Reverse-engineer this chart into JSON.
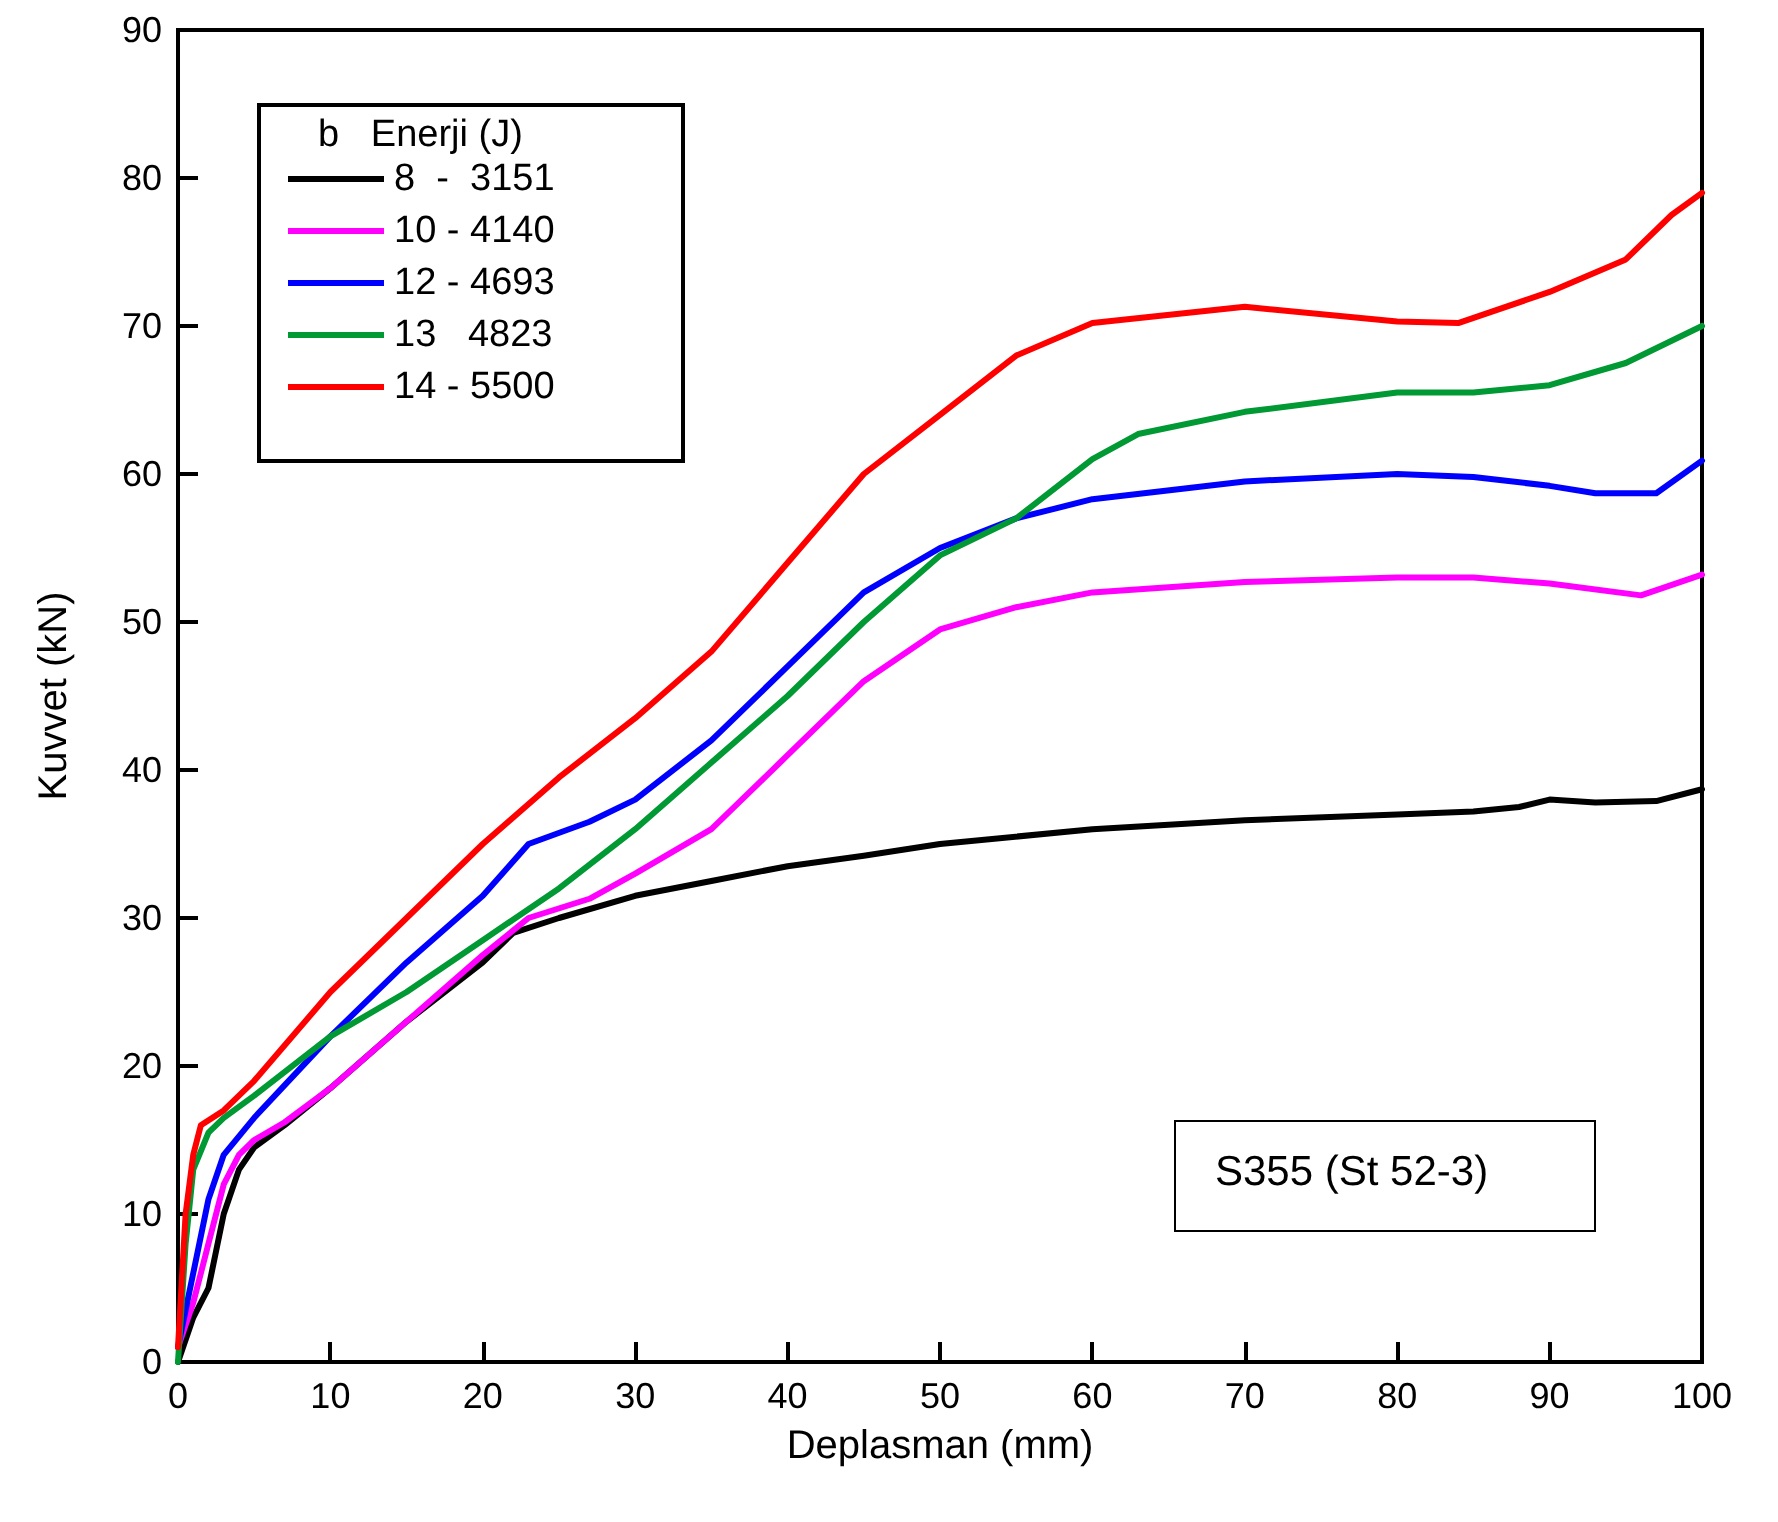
{
  "chart_data": {
    "type": "line",
    "xlabel": "Deplasman (mm)",
    "ylabel": "Kuvvet (kN)",
    "legend_title": "b   Enerji (J)",
    "legend": "top left",
    "grid": false,
    "marker": "none",
    "line_style": "solid",
    "xlim": [
      0,
      100
    ],
    "xticks": [
      0,
      10,
      20,
      30,
      40,
      50,
      60,
      70,
      80,
      90,
      100
    ],
    "ylim": [
      0,
      90
    ],
    "yticks": [
      0,
      10,
      20,
      30,
      40,
      50,
      60,
      70,
      80,
      90
    ],
    "annotations": [
      "S355 (St 52-3)"
    ],
    "series": [
      {
        "name": "8  -  3151",
        "color": "#000000",
        "x": [
          0,
          1,
          2,
          3,
          4,
          5,
          7,
          10,
          15,
          20,
          22,
          25,
          30,
          35,
          40,
          45,
          50,
          60,
          70,
          80,
          85,
          88,
          90,
          93,
          97,
          100
        ],
        "values": [
          0,
          3,
          5,
          10,
          13,
          14.5,
          16,
          18.5,
          23,
          27,
          29,
          30,
          31.5,
          32.5,
          33.5,
          34.2,
          35,
          36,
          36.6,
          37,
          37.2,
          37.5,
          38,
          37.8,
          37.9,
          38.7
        ]
      },
      {
        "name": "10 - 4140",
        "color": "#ff00ff",
        "x": [
          0,
          1,
          2,
          3,
          4,
          5,
          7,
          10,
          15,
          20,
          23,
          27,
          30,
          35,
          40,
          45,
          50,
          55,
          60,
          70,
          80,
          85,
          90,
          96,
          100
        ],
        "values": [
          1,
          4,
          8,
          12,
          14,
          15,
          16.2,
          18.5,
          23,
          27.5,
          30,
          31.3,
          33,
          36,
          41,
          46,
          49.5,
          51,
          52,
          52.7,
          53,
          53,
          52.6,
          51.8,
          53.2
        ]
      },
      {
        "name": "12 - 4693",
        "color": "#0000ff",
        "x": [
          0,
          1,
          2,
          3,
          5,
          10,
          15,
          20,
          23,
          27,
          30,
          35,
          40,
          45,
          50,
          55,
          60,
          70,
          80,
          85,
          90,
          93,
          97,
          100
        ],
        "values": [
          1,
          6,
          11,
          14,
          16.5,
          22,
          27,
          31.5,
          35,
          36.5,
          38,
          42,
          47,
          52,
          55,
          57,
          58.3,
          59.5,
          60,
          59.8,
          59.2,
          58.7,
          58.7,
          60.9
        ]
      },
      {
        "name": "13   4823",
        "color": "#009933",
        "x": [
          0,
          0.5,
          1,
          2,
          3,
          5,
          10,
          15,
          20,
          25,
          30,
          35,
          40,
          45,
          50,
          55,
          60,
          63,
          70,
          80,
          85,
          90,
          95,
          100
        ],
        "values": [
          0,
          8,
          13,
          15.5,
          16.5,
          18,
          22,
          25,
          28.5,
          32,
          36,
          40.5,
          45,
          50,
          54.5,
          57,
          61,
          62.7,
          64.2,
          65.5,
          65.5,
          66,
          67.5,
          70
        ]
      },
      {
        "name": "14 - 5500",
        "color": "#ff0000",
        "x": [
          0,
          0.5,
          1,
          1.5,
          3,
          5,
          10,
          15,
          20,
          25,
          30,
          35,
          40,
          45,
          50,
          55,
          60,
          70,
          80,
          84,
          90,
          95,
          98,
          100
        ],
        "values": [
          1,
          10,
          14,
          16,
          17,
          19,
          25,
          30,
          35,
          39.5,
          43.5,
          48,
          54,
          60,
          64,
          68,
          70.2,
          71.3,
          70.3,
          70.2,
          72.3,
          74.5,
          77.5,
          79
        ]
      }
    ]
  }
}
